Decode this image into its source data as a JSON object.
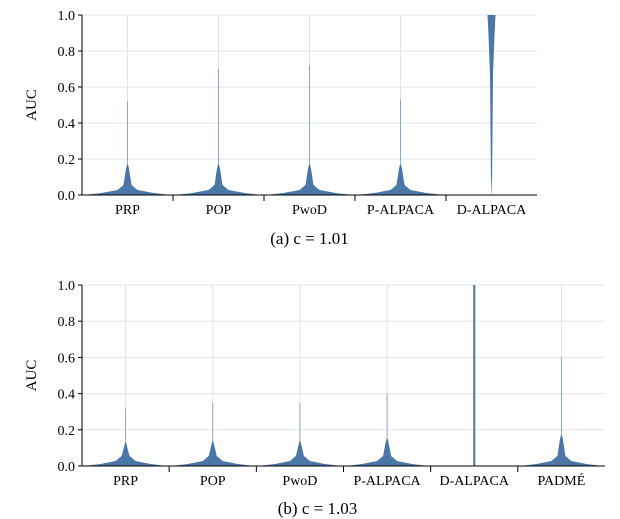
{
  "chart_data": [
    {
      "type": "violin",
      "ylabel": "AUC",
      "ylim": [
        0,
        1
      ],
      "yticks": [
        "0.0",
        "0.2",
        "0.4",
        "0.6",
        "0.8",
        "1.0"
      ],
      "categories": [
        "PRP",
        "POP",
        "PwoD",
        "P-ALPaCA",
        "D-ALPaCA"
      ],
      "category_labels": [
        "PRP",
        "POP",
        "PwoD",
        "P-ALPACA",
        "D-ALPACA"
      ],
      "caption": "(a) c = 1.01",
      "series": [
        {
          "category": "PRP",
          "median": 0.01,
          "max": 0.52,
          "shape": "wide-bottom"
        },
        {
          "category": "POP",
          "median": 0.01,
          "max": 0.7,
          "shape": "wide-bottom"
        },
        {
          "category": "PwoD",
          "median": 0.01,
          "max": 0.72,
          "shape": "wide-bottom"
        },
        {
          "category": "P-ALPaCA",
          "median": 0.01,
          "max": 0.53,
          "shape": "wide-bottom"
        },
        {
          "category": "D-ALPaCA",
          "median": 1.0,
          "min": 0.0,
          "shape": "wide-top"
        }
      ],
      "color": "#4a76a8",
      "grid": true
    },
    {
      "type": "violin",
      "ylabel": "AUC",
      "ylim": [
        0,
        1
      ],
      "yticks": [
        "0.0",
        "0.2",
        "0.4",
        "0.6",
        "0.8",
        "1.0"
      ],
      "categories": [
        "PRP",
        "POP",
        "PwoD",
        "P-ALPaCA",
        "D-ALPaCA",
        "Padmé"
      ],
      "category_labels": [
        "PRP",
        "POP",
        "PwoD",
        "P-ALPACA",
        "D-ALPACA",
        "PADMÉ"
      ],
      "caption": "(b) c = 1.03",
      "series": [
        {
          "category": "PRP",
          "median": 0.005,
          "max": 0.32,
          "shape": "wide-bottom"
        },
        {
          "category": "POP",
          "median": 0.005,
          "max": 0.35,
          "shape": "wide-bottom"
        },
        {
          "category": "PwoD",
          "median": 0.005,
          "max": 0.35,
          "shape": "wide-bottom"
        },
        {
          "category": "P-ALPaCA",
          "median": 0.005,
          "max": 0.4,
          "shape": "wide-bottom"
        },
        {
          "category": "D-ALPaCA",
          "median": 0.5,
          "min": 0.0,
          "max": 1.0,
          "shape": "thin-line"
        },
        {
          "category": "Padmé",
          "median": 0.005,
          "max": 0.6,
          "shape": "wide-bottom"
        }
      ],
      "color": "#4a76a8",
      "grid": true
    }
  ]
}
